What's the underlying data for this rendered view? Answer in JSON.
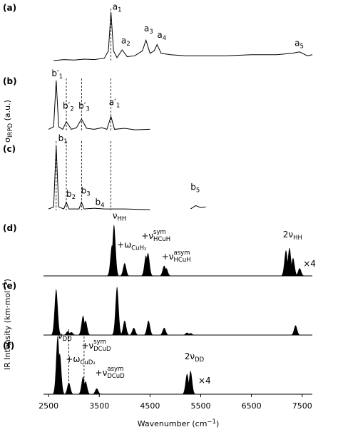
{
  "chart_data": {
    "type": "stacked-spectra",
    "xlabel": {
      "text": "Wavenumber (cm",
      "sup": "−1",
      "end": ")"
    },
    "ylabel_top": {
      "text": "σ",
      "sub": "IRPD",
      "end": " (a.u.)"
    },
    "ylabel_bottom": {
      "text": "IR Intensity (km·mol",
      "sup": "−1",
      "end": ")"
    },
    "xlim": [
      2400,
      7700
    ],
    "xticks": [
      2500,
      3500,
      4500,
      5500,
      6500,
      7500
    ],
    "panels": [
      {
        "label": "(a)",
        "kind": "line",
        "color": "#000000",
        "x": [
          2600,
          2800,
          3000,
          3200,
          3400,
          3600,
          3680,
          3730,
          3780,
          3850,
          3950,
          4050,
          4200,
          4350,
          4420,
          4500,
          4580,
          4640,
          4720,
          4900,
          5200,
          5600,
          6000,
          6500,
          7000,
          7300,
          7450,
          7600,
          7700
        ],
        "y": [
          0,
          0.02,
          0.01,
          0.03,
          0.02,
          0.05,
          0.2,
          1.0,
          0.2,
          0.06,
          0.22,
          0.08,
          0.1,
          0.2,
          0.42,
          0.15,
          0.2,
          0.33,
          0.15,
          0.12,
          0.1,
          0.1,
          0.1,
          0.12,
          0.12,
          0.15,
          0.18,
          0.1,
          0.12
        ],
        "guides": [
          3730
        ],
        "annotations": [
          {
            "text": "a",
            "sub": "1",
            "x": 3760,
            "y": 1.05
          },
          {
            "text": "a",
            "sub": "2",
            "x": 3930,
            "y": 0.35
          },
          {
            "text": "a",
            "sub": "3",
            "x": 4380,
            "y": 0.6
          },
          {
            "text": "a",
            "sub": "4",
            "x": 4640,
            "y": 0.47
          },
          {
            "text": "a",
            "sub": "5",
            "x": 7350,
            "y": 0.3
          }
        ]
      },
      {
        "label": "(b)",
        "kind": "line",
        "color": "#000000",
        "x": [
          2500,
          2600,
          2650,
          2700,
          2780,
          2850,
          2950,
          3050,
          3150,
          3250,
          3400,
          3550,
          3650,
          3730,
          3800,
          4000,
          4200,
          4500
        ],
        "y": [
          0.05,
          0.1,
          1.0,
          0.1,
          0.05,
          0.2,
          0.05,
          0.08,
          0.25,
          0.07,
          0.05,
          0.08,
          0.05,
          0.3,
          0.05,
          0.07,
          0.04,
          0.05
        ],
        "guides": [
          2850,
          3150,
          3730
        ],
        "annotations": [
          {
            "text": "b′",
            "sub": "1",
            "x": 2560,
            "y": 1.08
          },
          {
            "text": "b′",
            "sub": "2",
            "x": 2780,
            "y": 0.45
          },
          {
            "text": "b′",
            "sub": "3",
            "x": 3090,
            "y": 0.45
          },
          {
            "text": "a′",
            "sub": "1",
            "x": 3690,
            "y": 0.52
          }
        ]
      },
      {
        "label": "(c)",
        "kind": "line",
        "color": "#000000",
        "x": [
          2500,
          2600,
          2650,
          2700,
          2800,
          2850,
          2900,
          3100,
          3150,
          3200,
          3400,
          3600,
          4000,
          4500,
          null,
          5300,
          5400,
          5500,
          5600
        ],
        "y": [
          0.02,
          0.05,
          0.95,
          0.05,
          0.02,
          0.12,
          0.02,
          0.02,
          0.12,
          0.02,
          0.03,
          0.02,
          0.02,
          0.01,
          null,
          0.02,
          0.07,
          0.04,
          0.05
        ],
        "guides": [
          2650,
          2850,
          3150,
          3730
        ],
        "annotations": [
          {
            "text": "b",
            "sub": "1",
            "x": 2690,
            "y": 1.02
          },
          {
            "text": "b",
            "sub": "2",
            "x": 2850,
            "y": 0.2
          },
          {
            "text": "b",
            "sub": "3",
            "x": 3140,
            "y": 0.25
          },
          {
            "text": "b",
            "sub": "4",
            "x": 3420,
            "y": 0.08
          },
          {
            "text": "b",
            "sub": "5",
            "x": 5300,
            "y": 0.3
          }
        ]
      },
      {
        "label": "(d)",
        "kind": "peaks",
        "color": "#000000",
        "x": [
          3750,
          3790,
          4000,
          4420,
          4460,
          4780,
          4820,
          7180,
          7250,
          7320,
          7450
        ],
        "y": [
          0.6,
          1.0,
          0.25,
          0.4,
          0.45,
          0.2,
          0.15,
          0.5,
          0.55,
          0.35,
          0.15
        ],
        "guides": [],
        "annotations": [
          {
            "text": "ν",
            "sub": "HH",
            "x": 3760,
            "y": 1.12
          },
          {
            "text": "+ω",
            "sub": "CuH₂",
            "x": 3850,
            "y": 0.55
          },
          {
            "text": "+ν",
            "sub": "HCuH",
            "sup": "sym",
            "x": 4330,
            "y": 0.72
          },
          {
            "text": "+ν",
            "sub": "HCuH",
            "sup": "asym",
            "x": 4730,
            "y": 0.32
          },
          {
            "text": "2ν",
            "sub": "HH",
            "x": 7120,
            "y": 0.75
          },
          {
            "text": "×4",
            "x": 7520,
            "y": 0.18
          }
        ]
      },
      {
        "label": "(e)",
        "kind": "peaks",
        "color": "#000000",
        "x": [
          2650,
          2880,
          2950,
          3180,
          3230,
          3850,
          4000,
          4180,
          4470,
          4780,
          5230,
          5300,
          7370
        ],
        "y": [
          0.95,
          0.08,
          0.06,
          0.4,
          0.3,
          1.0,
          0.3,
          0.15,
          0.3,
          0.15,
          0.05,
          0.04,
          0.2
        ],
        "guides": [],
        "annotations": []
      },
      {
        "label": "(f)",
        "kind": "peaks",
        "color": "#000000",
        "x": [
          2680,
          2720,
          2900,
          3180,
          3230,
          3450,
          5230,
          5300
        ],
        "y": [
          1.0,
          0.7,
          0.2,
          0.3,
          0.22,
          0.1,
          0.35,
          0.4
        ],
        "guides": [
          2900,
          3200
        ],
        "annotations": [
          {
            "text": "ν",
            "sub": "DD",
            "x": 2680,
            "y": 0.95
          },
          {
            "text": "+ω",
            "sub": "CuD₂",
            "x": 2840,
            "y": 0.55
          },
          {
            "text": "+ν",
            "sub": "DCuD",
            "sup": "sym",
            "x": 3150,
            "y": 0.78
          },
          {
            "text": "+ν",
            "sub": "DCuD",
            "sup": "asym",
            "x": 3420,
            "y": 0.32
          },
          {
            "text": "2ν",
            "sub": "DD",
            "x": 5180,
            "y": 0.6
          },
          {
            "text": "×4",
            "x": 5450,
            "y": 0.18
          }
        ]
      }
    ]
  }
}
